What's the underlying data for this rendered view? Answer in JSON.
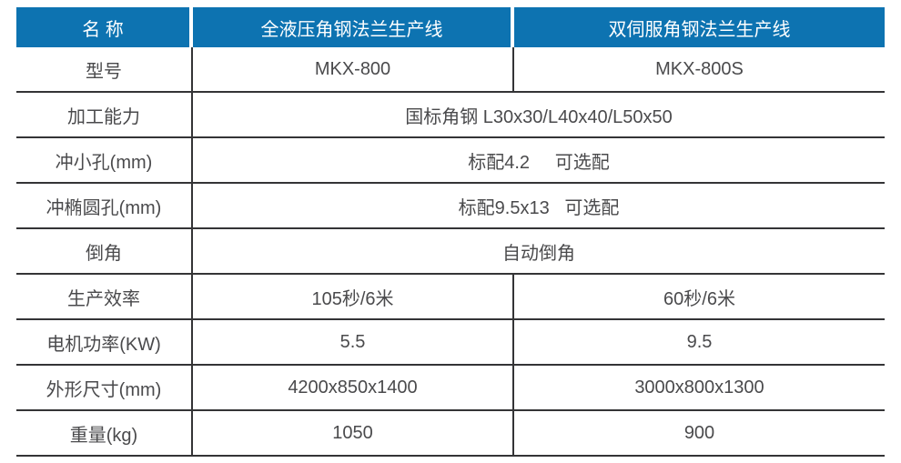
{
  "table": {
    "header": {
      "name": "名 称",
      "product1": "全液压角钢法兰生产线",
      "product2": "双伺服角钢法兰生产线"
    },
    "rows": [
      {
        "label": "型号",
        "col1": "MKX-800",
        "col2": "MKX-800S"
      },
      {
        "label": "加工能力",
        "value": "国标角钢 L30x30/L40x40/L50x50"
      },
      {
        "label": "冲小孔(mm)",
        "value": "标配4.2     可选配"
      },
      {
        "label": "冲椭圆孔(mm)",
        "value": "标配9.5x13   可选配"
      },
      {
        "label": "倒角",
        "value": "自动倒角"
      },
      {
        "label": "生产效率",
        "col1": "105秒/6米",
        "col2": "60秒/6米"
      },
      {
        "label": "电机功率(KW)",
        "col1": "5.5",
        "col2": "9.5"
      },
      {
        "label": "外形尺寸(mm)",
        "col1": "4200x850x1400",
        "col2": "3000x800x1300"
      },
      {
        "label": "重量(kg)",
        "col1": "1050",
        "col2": "900"
      }
    ]
  },
  "colors": {
    "header_bg": "#0d73b1",
    "header_text": "#ffffff",
    "border": "#343436",
    "text": "#4a4a4c",
    "page_bg": "#ffffff"
  }
}
